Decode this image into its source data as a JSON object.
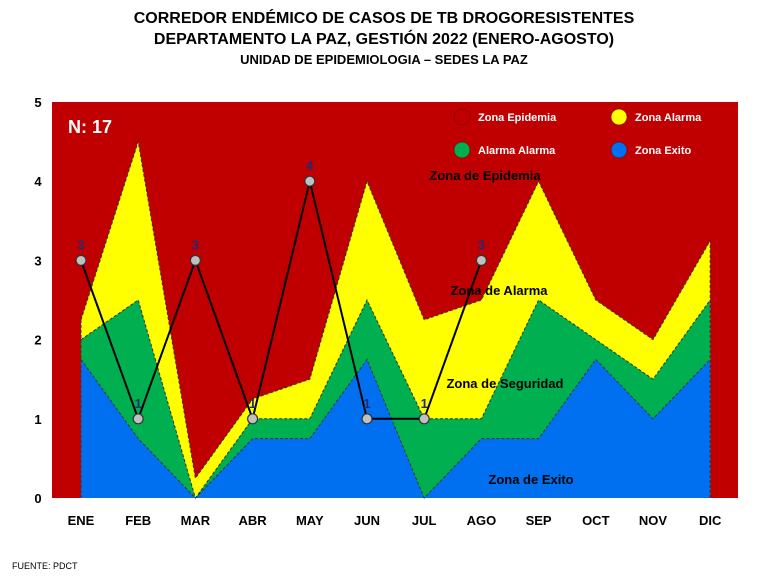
{
  "header": {
    "line1": "CORREDOR ENDÉMICO DE CASOS DE TB DROGORESISTENTES",
    "line2": "DEPARTAMENTO  LA PAZ, GESTIÓN 2022 (ENERO-AGOSTO)",
    "line3": "UNIDAD DE EPIDEMIOLOGIA – SEDES LA PAZ"
  },
  "source": "FUENTE:  PDCT",
  "colors": {
    "epidemia": "#c00000",
    "alarma": "#ffff00",
    "seguridad": "#00b050",
    "exito": "#0070f0",
    "cases_line": "#000000",
    "marker": "#c0c0c0",
    "data_label": "#1f2d70"
  },
  "chart_data": {
    "type": "area",
    "x": [
      "ENE",
      "FEB",
      "MAR",
      "ABR",
      "MAY",
      "JUN",
      "JUL",
      "AGO",
      "SEP",
      "OCT",
      "NOV",
      "DIC"
    ],
    "ylim": [
      0,
      5
    ],
    "yticks": [
      "0",
      "1",
      "2",
      "3",
      "4",
      "5"
    ],
    "n_label": "N: 17",
    "bands": [
      {
        "name": "Zona Exito",
        "upper": [
          1.75,
          0.75,
          0,
          0.75,
          0.75,
          1.75,
          0,
          0.75,
          0.75,
          1.75,
          1,
          1.75
        ]
      },
      {
        "name": "Alarma  Alarma",
        "upper": [
          2,
          2.5,
          0,
          1,
          1,
          2.5,
          1,
          1,
          2.5,
          2,
          1.5,
          2.5
        ]
      },
      {
        "name": "Zona  Alarma",
        "upper": [
          2.25,
          4.5,
          0.25,
          1.25,
          1.5,
          4,
          2.25,
          2.5,
          4,
          2.5,
          2,
          3.25
        ]
      },
      {
        "name": "Zona Epidemia",
        "upper": [
          5,
          5,
          5,
          5,
          5,
          5,
          5,
          5,
          5,
          5,
          5,
          5
        ]
      }
    ],
    "legend": [
      "Zona Epidemia",
      "Zona  Alarma",
      "Alarma  Alarma",
      "Zona Exito"
    ],
    "zone_labels": [
      "Zona de Epidemia",
      "Zona de Alarma",
      "Zona de Seguridad",
      "Zona de Exito"
    ],
    "cases": {
      "values": [
        3,
        1,
        3,
        1,
        4,
        1,
        1,
        3
      ]
    }
  }
}
